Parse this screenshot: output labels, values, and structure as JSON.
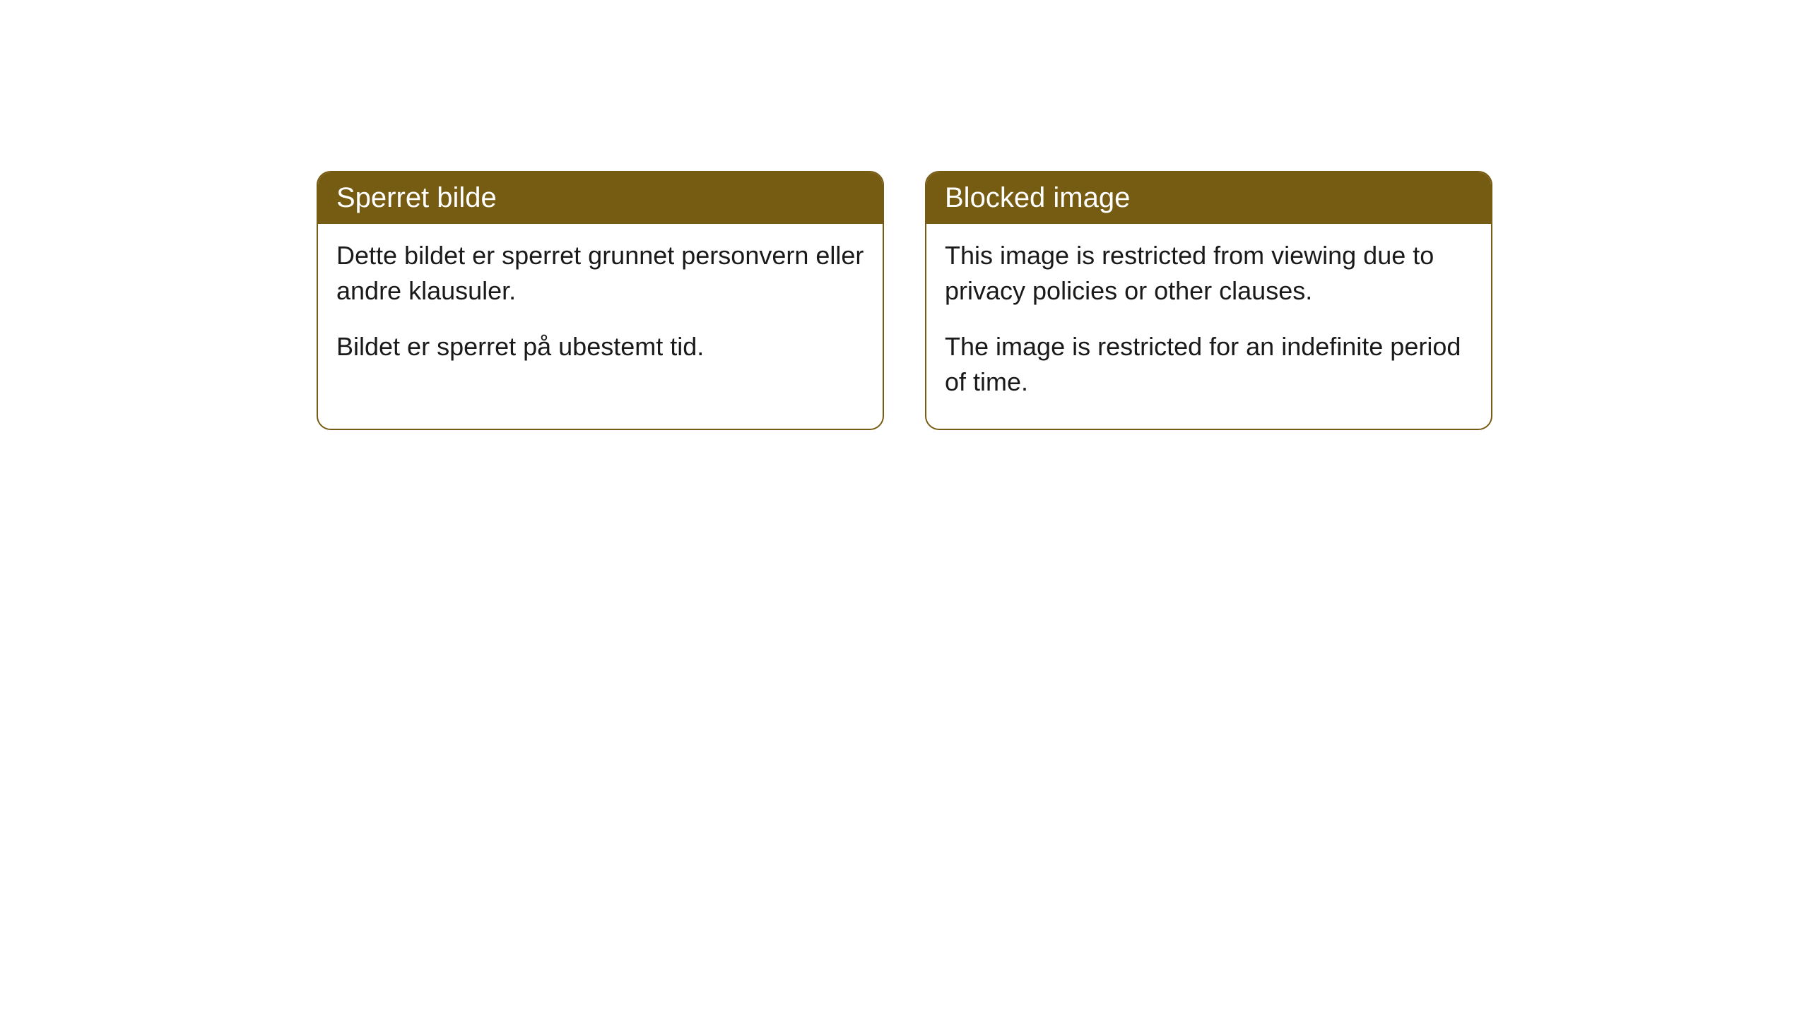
{
  "cards": [
    {
      "title": "Sperret bilde",
      "paragraph1": "Dette bildet er sperret grunnet personvern eller andre klausuler.",
      "paragraph2": "Bildet er sperret på ubestemt tid."
    },
    {
      "title": "Blocked image",
      "paragraph1": "This image is restricted from viewing due to privacy policies or other clauses.",
      "paragraph2": "The image is restricted for an indefinite period of time."
    }
  ],
  "styling": {
    "header_bg_color": "#765b12",
    "header_text_color": "#ffffff",
    "border_color": "#765b12",
    "body_bg_color": "#ffffff",
    "body_text_color": "#1a1a1a",
    "border_radius": 20,
    "title_fontsize": 40,
    "body_fontsize": 36
  }
}
